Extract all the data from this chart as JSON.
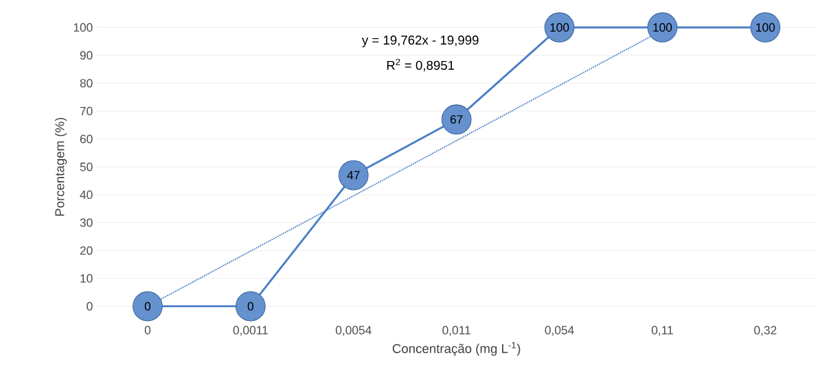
{
  "chart_data": {
    "type": "line",
    "xlabel": "Concentração (mg L$^{-1}$)",
    "ylabel": "Porcentagem (%)",
    "categories": [
      "0",
      "0,0011",
      "0,0054",
      "0,011",
      "0,054",
      "0,11",
      "0,32"
    ],
    "series": [
      {
        "color": "#4a7ec6",
        "values": [
          0,
          0,
          47,
          67,
          100,
          100,
          100
        ],
        "value_labels": [
          "0",
          "0",
          "47",
          "67",
          "100",
          "100",
          "100"
        ],
        "marker": "circle",
        "line_style": "solid"
      },
      {
        "type": "line",
        "color": "#4a7ec6",
        "x": [
          "0",
          "0,11"
        ],
        "values": [
          0,
          99
        ],
        "marker": "none",
        "line_style": "dotted"
      }
    ],
    "ylim": [
      0,
      100
    ],
    "yticks": [
      0,
      10,
      20,
      30,
      40,
      50,
      60,
      70,
      80,
      90,
      100
    ],
    "grid": "y",
    "annotations": [
      "y = 19,762x - 19,999",
      "R$^{2}$ = 0,8951"
    ]
  }
}
